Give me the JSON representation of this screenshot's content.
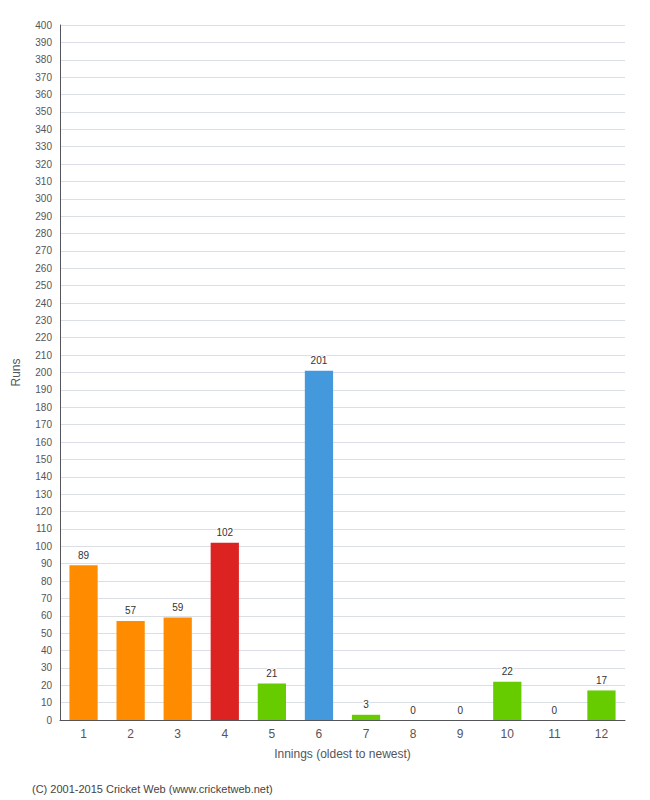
{
  "chart_data": {
    "type": "bar",
    "xlabel": "Innings (oldest to newest)",
    "ylabel": "Runs",
    "categories": [
      1,
      2,
      3,
      4,
      5,
      6,
      7,
      8,
      9,
      10,
      11,
      12
    ],
    "values": [
      89,
      57,
      59,
      102,
      21,
      201,
      3,
      0,
      0,
      22,
      0,
      17
    ],
    "colors": [
      "#ff8c00",
      "#ff8c00",
      "#ff8c00",
      "#dd2222",
      "#66cc00",
      "#4499dd",
      "#66cc00",
      "#66cc00",
      "#66cc00",
      "#66cc00",
      "#66cc00",
      "#66cc00"
    ],
    "ylim": [
      0,
      400
    ],
    "yticks": [
      0,
      10,
      20,
      30,
      40,
      50,
      60,
      70,
      80,
      90,
      100,
      110,
      120,
      130,
      140,
      150,
      160,
      170,
      180,
      190,
      200,
      210,
      220,
      230,
      240,
      250,
      260,
      270,
      280,
      290,
      300,
      310,
      320,
      330,
      340,
      350,
      360,
      370,
      380,
      390,
      400
    ],
    "grid": true,
    "data_labels": true,
    "footer": "(C) 2001-2015 Cricket Web (www.cricketweb.net)"
  }
}
